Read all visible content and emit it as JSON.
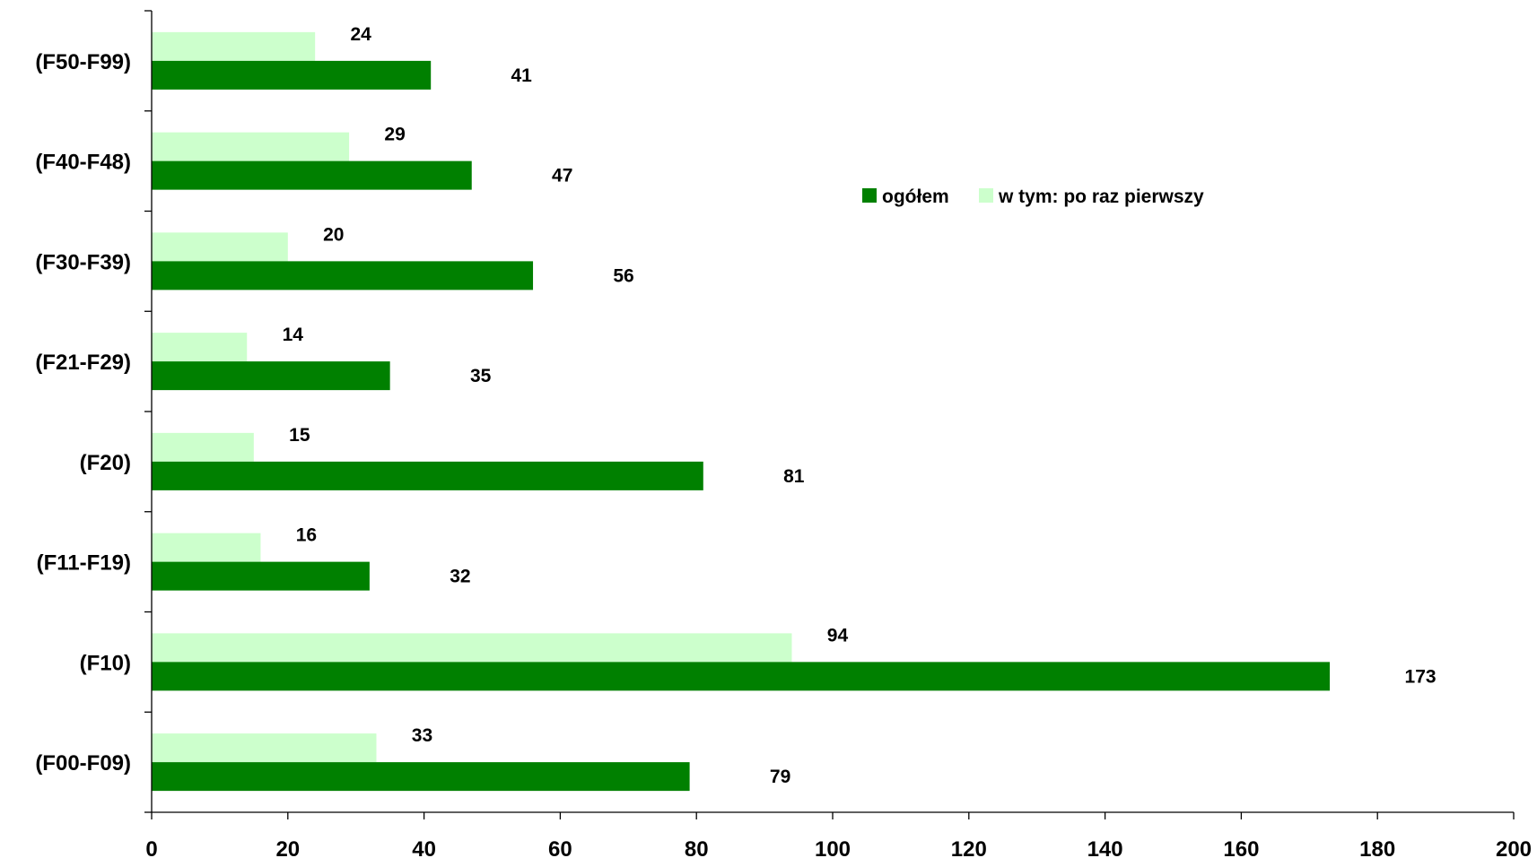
{
  "chart_data": {
    "type": "bar",
    "orientation": "horizontal",
    "title": "",
    "xlabel": "",
    "ylabel": "",
    "categories": [
      "(F00-F09)",
      "(F10)",
      "(F11-F19)",
      "(F20)",
      "(F21-F29)",
      "(F30-F39)",
      "(F40-F48)",
      "(F50-F99)"
    ],
    "series": [
      {
        "name": "ogółem",
        "color": "#008000",
        "values": [
          79,
          173,
          32,
          81,
          35,
          56,
          47,
          41
        ]
      },
      {
        "name": "w tym: po raz pierwszy",
        "color": "#ccffcc",
        "values": [
          33,
          94,
          16,
          15,
          14,
          20,
          29,
          24
        ]
      }
    ],
    "xlim": [
      0,
      200
    ],
    "xticks": [
      0,
      20,
      40,
      60,
      80,
      100,
      120,
      140,
      160,
      180,
      200
    ],
    "grid": false,
    "legend_position": "top-right",
    "data_labels": true
  }
}
